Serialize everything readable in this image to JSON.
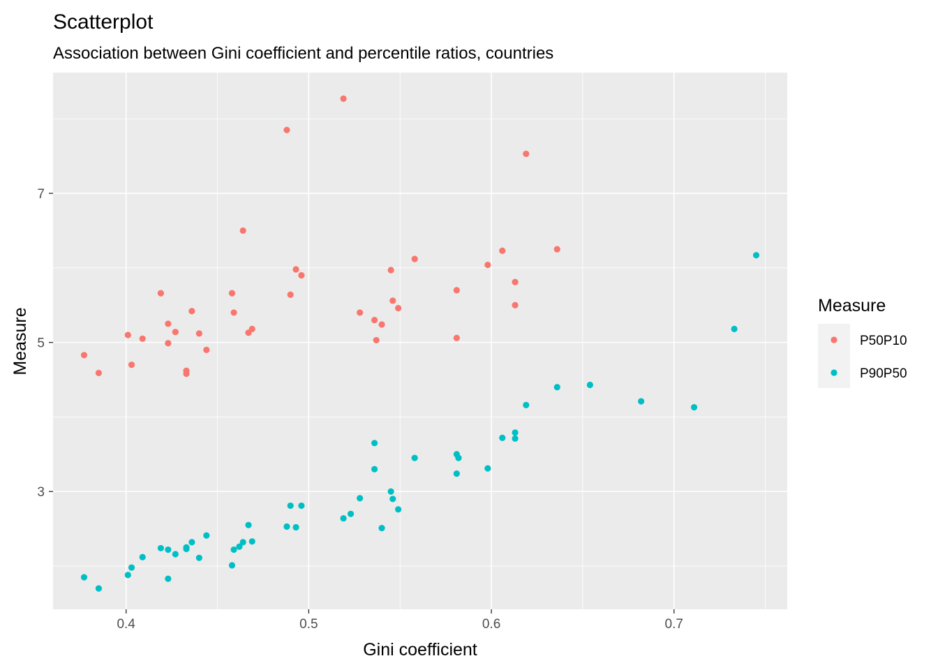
{
  "chart_data": {
    "type": "scatter",
    "title": "Scatterplot",
    "subtitle": "Association between Gini coefficient and percentile ratios, countries",
    "xlabel": "Gini coefficient",
    "ylabel": "Measure",
    "xlim": [
      0.36,
      0.762
    ],
    "ylim": [
      1.42,
      8.62
    ],
    "xticks": [
      0.4,
      0.5,
      0.6,
      0.7
    ],
    "xtick_labels": [
      "0.4",
      "0.5",
      "0.6",
      "0.7"
    ],
    "yticks": [
      3,
      5,
      7
    ],
    "ytick_labels": [
      "3",
      "5",
      "7"
    ],
    "grid": true,
    "legend": {
      "title": "Measure",
      "position": "right"
    },
    "series": [
      {
        "name": "P50P10",
        "color": "#F8766D",
        "points": [
          [
            0.377,
            4.83
          ],
          [
            0.385,
            4.59
          ],
          [
            0.401,
            5.1
          ],
          [
            0.403,
            4.7
          ],
          [
            0.409,
            5.05
          ],
          [
            0.419,
            5.66
          ],
          [
            0.423,
            5.25
          ],
          [
            0.423,
            4.99
          ],
          [
            0.427,
            5.14
          ],
          [
            0.433,
            4.58
          ],
          [
            0.433,
            4.62
          ],
          [
            0.436,
            5.42
          ],
          [
            0.44,
            5.12
          ],
          [
            0.444,
            4.9
          ],
          [
            0.458,
            5.66
          ],
          [
            0.459,
            5.4
          ],
          [
            0.464,
            6.5
          ],
          [
            0.467,
            5.13
          ],
          [
            0.469,
            5.18
          ],
          [
            0.488,
            7.85
          ],
          [
            0.49,
            5.64
          ],
          [
            0.493,
            5.98
          ],
          [
            0.496,
            5.9
          ],
          [
            0.519,
            8.27
          ],
          [
            0.528,
            5.4
          ],
          [
            0.536,
            5.3
          ],
          [
            0.537,
            5.03
          ],
          [
            0.54,
            5.24
          ],
          [
            0.545,
            5.97
          ],
          [
            0.546,
            5.56
          ],
          [
            0.549,
            5.46
          ],
          [
            0.558,
            6.12
          ],
          [
            0.581,
            5.7
          ],
          [
            0.581,
            5.06
          ],
          [
            0.598,
            6.04
          ],
          [
            0.606,
            6.23
          ],
          [
            0.613,
            5.81
          ],
          [
            0.613,
            5.5
          ],
          [
            0.619,
            7.53
          ],
          [
            0.636,
            6.25
          ]
        ]
      },
      {
        "name": "P90P50",
        "color": "#00BFC4",
        "points": [
          [
            0.377,
            1.85
          ],
          [
            0.385,
            1.7
          ],
          [
            0.401,
            1.88
          ],
          [
            0.403,
            1.98
          ],
          [
            0.409,
            2.12
          ],
          [
            0.419,
            2.24
          ],
          [
            0.423,
            2.22
          ],
          [
            0.423,
            1.83
          ],
          [
            0.427,
            2.16
          ],
          [
            0.433,
            2.23
          ],
          [
            0.433,
            2.25
          ],
          [
            0.436,
            2.32
          ],
          [
            0.44,
            2.11
          ],
          [
            0.444,
            2.41
          ],
          [
            0.458,
            2.01
          ],
          [
            0.459,
            2.22
          ],
          [
            0.462,
            2.26
          ],
          [
            0.464,
            2.32
          ],
          [
            0.467,
            2.55
          ],
          [
            0.469,
            2.33
          ],
          [
            0.488,
            2.53
          ],
          [
            0.49,
            2.81
          ],
          [
            0.493,
            2.52
          ],
          [
            0.496,
            2.81
          ],
          [
            0.519,
            2.64
          ],
          [
            0.523,
            2.7
          ],
          [
            0.528,
            2.91
          ],
          [
            0.536,
            3.65
          ],
          [
            0.536,
            3.3
          ],
          [
            0.54,
            2.51
          ],
          [
            0.545,
            3.0
          ],
          [
            0.546,
            2.9
          ],
          [
            0.549,
            2.76
          ],
          [
            0.558,
            3.45
          ],
          [
            0.581,
            3.5
          ],
          [
            0.582,
            3.45
          ],
          [
            0.581,
            3.24
          ],
          [
            0.598,
            3.31
          ],
          [
            0.606,
            3.72
          ],
          [
            0.613,
            3.71
          ],
          [
            0.613,
            3.79
          ],
          [
            0.619,
            4.16
          ],
          [
            0.636,
            4.4
          ],
          [
            0.654,
            4.43
          ],
          [
            0.682,
            4.21
          ],
          [
            0.711,
            4.13
          ],
          [
            0.733,
            5.18
          ],
          [
            0.745,
            6.17
          ]
        ]
      }
    ]
  }
}
